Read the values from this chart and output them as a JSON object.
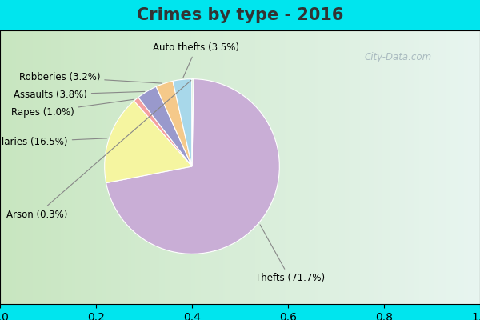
{
  "title": "Crimes by type - 2016",
  "title_fontsize": 15,
  "title_fontweight": "bold",
  "title_color": "#333333",
  "slices": [
    {
      "label": "Thefts",
      "pct": 71.7,
      "color": "#c9aed6"
    },
    {
      "label": "Burglaries",
      "pct": 16.5,
      "color": "#f5f5a0"
    },
    {
      "label": "Rapes",
      "pct": 1.0,
      "color": "#f4a0a0"
    },
    {
      "label": "Assaults",
      "pct": 3.8,
      "color": "#9999cc"
    },
    {
      "label": "Robberies",
      "pct": 3.2,
      "color": "#f5c98a"
    },
    {
      "label": "Auto thefts",
      "pct": 3.5,
      "color": "#a8d8ea"
    },
    {
      "label": "Arson",
      "pct": 0.3,
      "color": "#d4edd4"
    }
  ],
  "cyan_color": "#00e5ee",
  "bg_left_color": "#c8e6c0",
  "bg_right_color": "#e8f5f0",
  "watermark": "City-Data.com",
  "watermark_color": "#aabbc0",
  "label_fontsize": 8.5,
  "annotation_color": "#555555"
}
